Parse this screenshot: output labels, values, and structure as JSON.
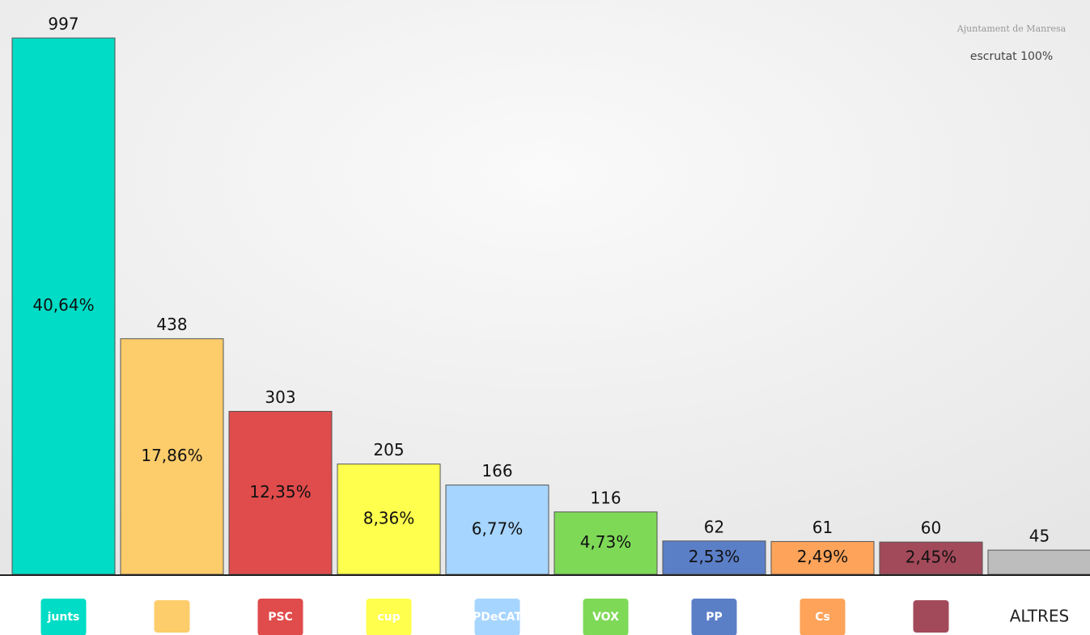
{
  "chart_data": {
    "type": "bar",
    "header": "Ajuntament de Manresa",
    "subtitle": "escrutat 100%",
    "categories": [
      "junts",
      null,
      "PSC",
      "cup",
      "PDeCAT",
      "VOX",
      "PP",
      "Cs",
      null,
      "ALTRES"
    ],
    "values": [
      997,
      438,
      303,
      205,
      166,
      116,
      62,
      61,
      60,
      45
    ],
    "shares": [
      40.64,
      17.86,
      12.35,
      8.36,
      6.77,
      4.73,
      2.53,
      2.49,
      2.45,
      null
    ],
    "share_labels": [
      "40,64%",
      "17,86%",
      "12,35%",
      "8,36%",
      "6,77%",
      "4,73%",
      "2,53%",
      "2,49%",
      "2,45%",
      null
    ],
    "colors": [
      "#00dcc5",
      "#fdcc6b",
      "#e04b4b",
      "#ffff4d",
      "#a6d5ff",
      "#7ed957",
      "#5b7fc7",
      "#fea35a",
      "#a34a5a",
      "#bdbdbd"
    ]
  }
}
